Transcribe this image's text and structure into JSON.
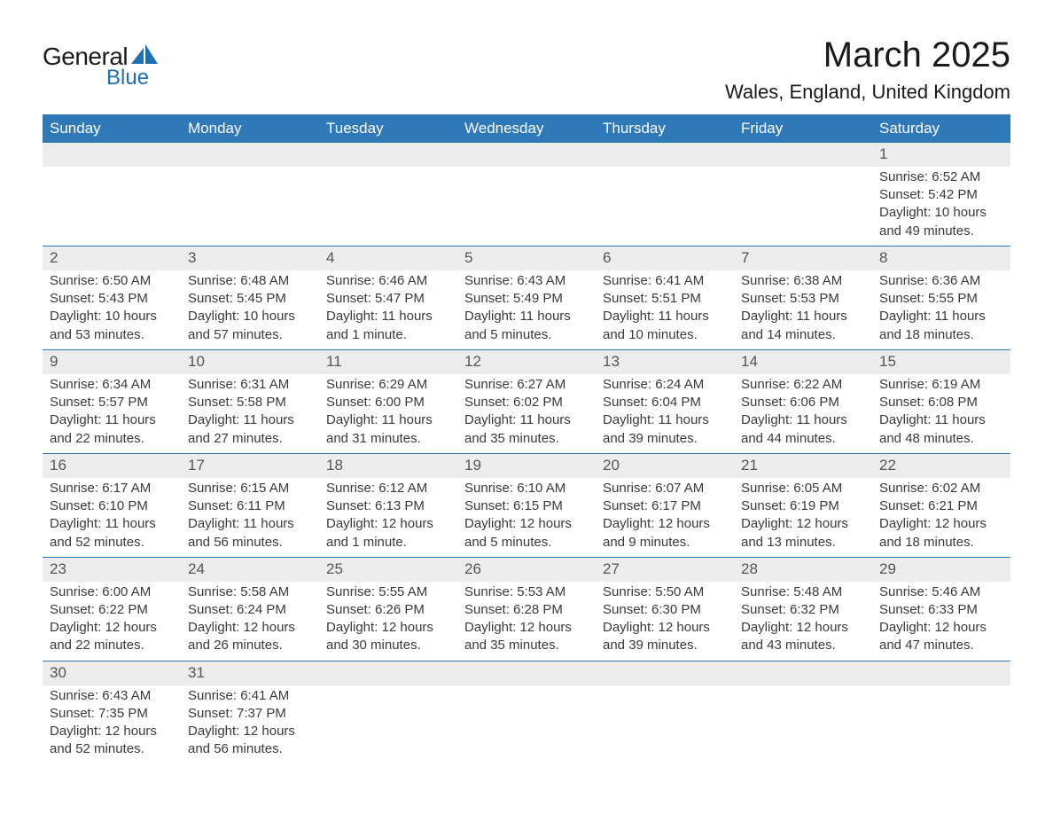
{
  "logo": {
    "general": "General",
    "blue": "Blue",
    "accent_color": "#1f6fb2"
  },
  "title": "March 2025",
  "location": "Wales, England, United Kingdom",
  "header_bg": "#2f79b9",
  "daynum_bg": "#ececec",
  "border_color": "#2f79b9",
  "text_color": "#3a3a3a",
  "day_headers": [
    "Sunday",
    "Monday",
    "Tuesday",
    "Wednesday",
    "Thursday",
    "Friday",
    "Saturday"
  ],
  "weeks": [
    [
      {
        "n": "",
        "lines": []
      },
      {
        "n": "",
        "lines": []
      },
      {
        "n": "",
        "lines": []
      },
      {
        "n": "",
        "lines": []
      },
      {
        "n": "",
        "lines": []
      },
      {
        "n": "",
        "lines": []
      },
      {
        "n": "1",
        "lines": [
          "Sunrise: 6:52 AM",
          "Sunset: 5:42 PM",
          "Daylight: 10 hours and 49 minutes."
        ]
      }
    ],
    [
      {
        "n": "2",
        "lines": [
          "Sunrise: 6:50 AM",
          "Sunset: 5:43 PM",
          "Daylight: 10 hours and 53 minutes."
        ]
      },
      {
        "n": "3",
        "lines": [
          "Sunrise: 6:48 AM",
          "Sunset: 5:45 PM",
          "Daylight: 10 hours and 57 minutes."
        ]
      },
      {
        "n": "4",
        "lines": [
          "Sunrise: 6:46 AM",
          "Sunset: 5:47 PM",
          "Daylight: 11 hours and 1 minute."
        ]
      },
      {
        "n": "5",
        "lines": [
          "Sunrise: 6:43 AM",
          "Sunset: 5:49 PM",
          "Daylight: 11 hours and 5 minutes."
        ]
      },
      {
        "n": "6",
        "lines": [
          "Sunrise: 6:41 AM",
          "Sunset: 5:51 PM",
          "Daylight: 11 hours and 10 minutes."
        ]
      },
      {
        "n": "7",
        "lines": [
          "Sunrise: 6:38 AM",
          "Sunset: 5:53 PM",
          "Daylight: 11 hours and 14 minutes."
        ]
      },
      {
        "n": "8",
        "lines": [
          "Sunrise: 6:36 AM",
          "Sunset: 5:55 PM",
          "Daylight: 11 hours and 18 minutes."
        ]
      }
    ],
    [
      {
        "n": "9",
        "lines": [
          "Sunrise: 6:34 AM",
          "Sunset: 5:57 PM",
          "Daylight: 11 hours and 22 minutes."
        ]
      },
      {
        "n": "10",
        "lines": [
          "Sunrise: 6:31 AM",
          "Sunset: 5:58 PM",
          "Daylight: 11 hours and 27 minutes."
        ]
      },
      {
        "n": "11",
        "lines": [
          "Sunrise: 6:29 AM",
          "Sunset: 6:00 PM",
          "Daylight: 11 hours and 31 minutes."
        ]
      },
      {
        "n": "12",
        "lines": [
          "Sunrise: 6:27 AM",
          "Sunset: 6:02 PM",
          "Daylight: 11 hours and 35 minutes."
        ]
      },
      {
        "n": "13",
        "lines": [
          "Sunrise: 6:24 AM",
          "Sunset: 6:04 PM",
          "Daylight: 11 hours and 39 minutes."
        ]
      },
      {
        "n": "14",
        "lines": [
          "Sunrise: 6:22 AM",
          "Sunset: 6:06 PM",
          "Daylight: 11 hours and 44 minutes."
        ]
      },
      {
        "n": "15",
        "lines": [
          "Sunrise: 6:19 AM",
          "Sunset: 6:08 PM",
          "Daylight: 11 hours and 48 minutes."
        ]
      }
    ],
    [
      {
        "n": "16",
        "lines": [
          "Sunrise: 6:17 AM",
          "Sunset: 6:10 PM",
          "Daylight: 11 hours and 52 minutes."
        ]
      },
      {
        "n": "17",
        "lines": [
          "Sunrise: 6:15 AM",
          "Sunset: 6:11 PM",
          "Daylight: 11 hours and 56 minutes."
        ]
      },
      {
        "n": "18",
        "lines": [
          "Sunrise: 6:12 AM",
          "Sunset: 6:13 PM",
          "Daylight: 12 hours and 1 minute."
        ]
      },
      {
        "n": "19",
        "lines": [
          "Sunrise: 6:10 AM",
          "Sunset: 6:15 PM",
          "Daylight: 12 hours and 5 minutes."
        ]
      },
      {
        "n": "20",
        "lines": [
          "Sunrise: 6:07 AM",
          "Sunset: 6:17 PM",
          "Daylight: 12 hours and 9 minutes."
        ]
      },
      {
        "n": "21",
        "lines": [
          "Sunrise: 6:05 AM",
          "Sunset: 6:19 PM",
          "Daylight: 12 hours and 13 minutes."
        ]
      },
      {
        "n": "22",
        "lines": [
          "Sunrise: 6:02 AM",
          "Sunset: 6:21 PM",
          "Daylight: 12 hours and 18 minutes."
        ]
      }
    ],
    [
      {
        "n": "23",
        "lines": [
          "Sunrise: 6:00 AM",
          "Sunset: 6:22 PM",
          "Daylight: 12 hours and 22 minutes."
        ]
      },
      {
        "n": "24",
        "lines": [
          "Sunrise: 5:58 AM",
          "Sunset: 6:24 PM",
          "Daylight: 12 hours and 26 minutes."
        ]
      },
      {
        "n": "25",
        "lines": [
          "Sunrise: 5:55 AM",
          "Sunset: 6:26 PM",
          "Daylight: 12 hours and 30 minutes."
        ]
      },
      {
        "n": "26",
        "lines": [
          "Sunrise: 5:53 AM",
          "Sunset: 6:28 PM",
          "Daylight: 12 hours and 35 minutes."
        ]
      },
      {
        "n": "27",
        "lines": [
          "Sunrise: 5:50 AM",
          "Sunset: 6:30 PM",
          "Daylight: 12 hours and 39 minutes."
        ]
      },
      {
        "n": "28",
        "lines": [
          "Sunrise: 5:48 AM",
          "Sunset: 6:32 PM",
          "Daylight: 12 hours and 43 minutes."
        ]
      },
      {
        "n": "29",
        "lines": [
          "Sunrise: 5:46 AM",
          "Sunset: 6:33 PM",
          "Daylight: 12 hours and 47 minutes."
        ]
      }
    ],
    [
      {
        "n": "30",
        "lines": [
          "Sunrise: 6:43 AM",
          "Sunset: 7:35 PM",
          "Daylight: 12 hours and 52 minutes."
        ]
      },
      {
        "n": "31",
        "lines": [
          "Sunrise: 6:41 AM",
          "Sunset: 7:37 PM",
          "Daylight: 12 hours and 56 minutes."
        ]
      },
      {
        "n": "",
        "lines": []
      },
      {
        "n": "",
        "lines": []
      },
      {
        "n": "",
        "lines": []
      },
      {
        "n": "",
        "lines": []
      },
      {
        "n": "",
        "lines": []
      }
    ]
  ]
}
